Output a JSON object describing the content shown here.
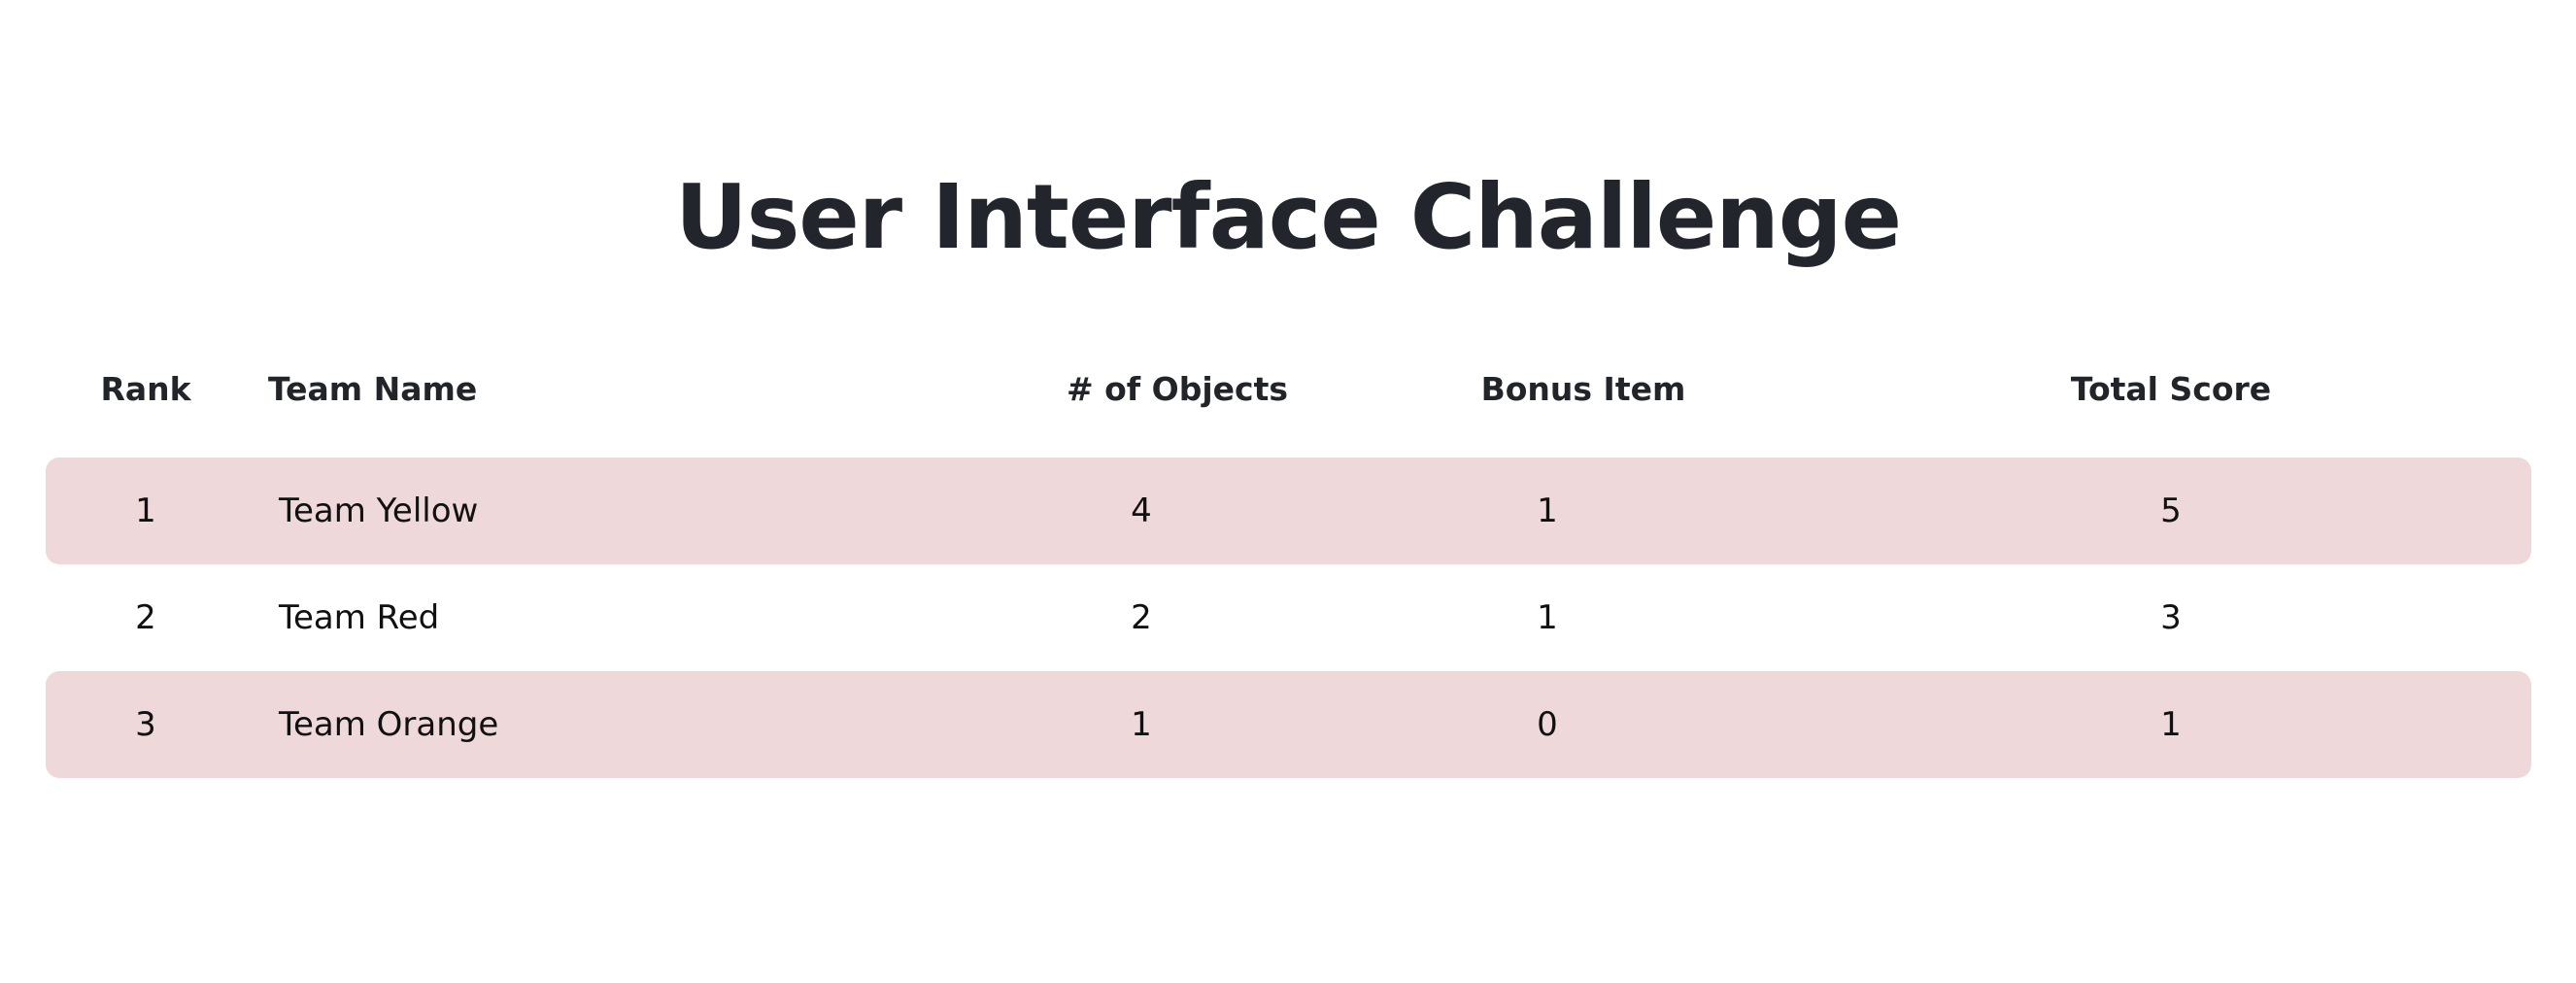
{
  "title": "User Interface Challenge",
  "table": {
    "headers": [
      "Rank",
      "Team Name",
      "# of Objects",
      "Bonus Item",
      "Total Score"
    ],
    "rows": [
      [
        "1",
        "Team Yellow",
        "4",
        "1",
        "5"
      ],
      [
        "2",
        "Team Red",
        "2",
        "1",
        "3"
      ],
      [
        "3",
        "Team Orange",
        "1",
        "0",
        "1"
      ]
    ]
  },
  "colors": {
    "row_highlight": "#eed8da",
    "text": "#212529"
  }
}
